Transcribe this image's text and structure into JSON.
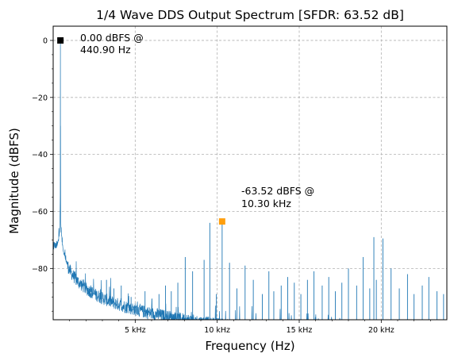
{
  "chart_data": {
    "type": "line",
    "title": "1/4 Wave DDS Output Spectrum [SFDR: 63.52 dB]",
    "xlabel": "Frequency (Hz)",
    "ylabel": "Magnitude (dBFS)",
    "xlim": [
      0,
      24000
    ],
    "ylim": [
      -98,
      5
    ],
    "grid": true,
    "line_color": "#1f77b4",
    "x_ticks": [
      {
        "value": 5000,
        "label": "5 kHz"
      },
      {
        "value": 10000,
        "label": "10 kHz"
      },
      {
        "value": 15000,
        "label": "15 kHz"
      },
      {
        "value": 20000,
        "label": "20 kHz"
      }
    ],
    "y_ticks": [
      {
        "value": 0,
        "label": "0"
      },
      {
        "value": -20,
        "label": "−20"
      },
      {
        "value": -40,
        "label": "−40"
      },
      {
        "value": -60,
        "label": "−60"
      },
      {
        "value": -80,
        "label": "−80"
      }
    ],
    "fundamental": {
      "frequency": 440.9,
      "magnitude": 0.0,
      "color": "#000000",
      "label_line1": "0.00 dBFS @",
      "label_line2": "440.90 Hz"
    },
    "worst_spur": {
      "frequency": 10300,
      "magnitude": -63.52,
      "color": "#ff9f0e",
      "label_line1": "-63.52 dBFS @",
      "label_line2": "10.30 kHz"
    },
    "spurs": [
      [
        2300,
        -86
      ],
      [
        3250,
        -84
      ],
      [
        3700,
        -87
      ],
      [
        4150,
        -86
      ],
      [
        4750,
        -90
      ],
      [
        5600,
        -88
      ],
      [
        6450,
        -89
      ],
      [
        6850,
        -86
      ],
      [
        7200,
        -88
      ],
      [
        7600,
        -85
      ],
      [
        8050,
        -76
      ],
      [
        8500,
        -81
      ],
      [
        9200,
        -77
      ],
      [
        9550,
        -64
      ],
      [
        9950,
        -89
      ],
      [
        10300,
        -63.52
      ],
      [
        10750,
        -78
      ],
      [
        11200,
        -87
      ],
      [
        11700,
        -79
      ],
      [
        12200,
        -84
      ],
      [
        12750,
        -89
      ],
      [
        13150,
        -81
      ],
      [
        13450,
        -88
      ],
      [
        13900,
        -86
      ],
      [
        14300,
        -83
      ],
      [
        14700,
        -85
      ],
      [
        15100,
        -89
      ],
      [
        15500,
        -84
      ],
      [
        15900,
        -81
      ],
      [
        16400,
        -86
      ],
      [
        16800,
        -83
      ],
      [
        17200,
        -88
      ],
      [
        17600,
        -85
      ],
      [
        18000,
        -80
      ],
      [
        18500,
        -86
      ],
      [
        18900,
        -76
      ],
      [
        19300,
        -87
      ],
      [
        19550,
        -69
      ],
      [
        19700,
        -84
      ],
      [
        20100,
        -69.5
      ],
      [
        20600,
        -80
      ],
      [
        21100,
        -87
      ],
      [
        21600,
        -82
      ],
      [
        22000,
        -89
      ],
      [
        22500,
        -86
      ],
      [
        22900,
        -83
      ],
      [
        23400,
        -88
      ],
      [
        23800,
        -89
      ]
    ]
  }
}
